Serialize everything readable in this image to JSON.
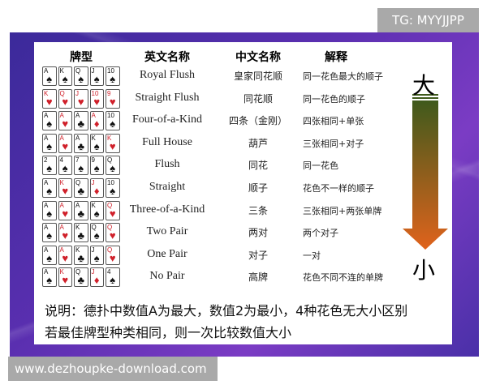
{
  "watermark_top": "TG: MYYJJPP",
  "watermark_bottom": "www.dezhoupke-download.com",
  "headers": {
    "hand": "牌型",
    "english": "英文名称",
    "chinese": "中文名称",
    "explain": "解释"
  },
  "rows": [
    {
      "cards": [
        [
          "A",
          "♠"
        ],
        [
          "K",
          "♠"
        ],
        [
          "Q",
          "♠"
        ],
        [
          "J",
          "♠"
        ],
        [
          "10",
          "♠"
        ]
      ],
      "english": "Royal Flush",
      "chinese": "皇家同花顺",
      "explain": "同一花色最大的顺子"
    },
    {
      "cards": [
        [
          "K",
          "♥"
        ],
        [
          "Q",
          "♥"
        ],
        [
          "J",
          "♥"
        ],
        [
          "10",
          "♥"
        ],
        [
          "9",
          "♥"
        ]
      ],
      "english": "Straight Flush",
      "chinese": "同花顺",
      "explain": "同一花色的顺子"
    },
    {
      "cards": [
        [
          "A",
          "♠"
        ],
        [
          "A",
          "♥"
        ],
        [
          "A",
          "♣"
        ],
        [
          "A",
          "♦"
        ],
        [
          "10",
          "♠"
        ]
      ],
      "english": "Four-of-a-Kind",
      "chinese": "四条（金刚）",
      "explain": "四张相同+单张"
    },
    {
      "cards": [
        [
          "A",
          "♠"
        ],
        [
          "A",
          "♥"
        ],
        [
          "A",
          "♣"
        ],
        [
          "K",
          "♠"
        ],
        [
          "K",
          "♥"
        ]
      ],
      "english": "Full House",
      "chinese": "葫芦",
      "explain": "三张相同+对子"
    },
    {
      "cards": [
        [
          "2",
          "♠"
        ],
        [
          "4",
          "♠"
        ],
        [
          "7",
          "♠"
        ],
        [
          "9",
          "♠"
        ],
        [
          "Q",
          "♠"
        ]
      ],
      "english": "Flush",
      "chinese": "同花",
      "explain": "同一花色"
    },
    {
      "cards": [
        [
          "A",
          "♠"
        ],
        [
          "K",
          "♥"
        ],
        [
          "Q",
          "♣"
        ],
        [
          "J",
          "♦"
        ],
        [
          "10",
          "♠"
        ]
      ],
      "english": "Straight",
      "chinese": "顺子",
      "explain": "花色不一样的顺子"
    },
    {
      "cards": [
        [
          "A",
          "♠"
        ],
        [
          "A",
          "♥"
        ],
        [
          "A",
          "♣"
        ],
        [
          "K",
          "♠"
        ],
        [
          "Q",
          "♥"
        ]
      ],
      "english": "Three-of-a-Kind",
      "chinese": "三条",
      "explain": "三张相同+两张单牌"
    },
    {
      "cards": [
        [
          "A",
          "♠"
        ],
        [
          "A",
          "♥"
        ],
        [
          "K",
          "♣"
        ],
        [
          "Q",
          "♠"
        ],
        [
          "Q",
          "♥"
        ]
      ],
      "english": "Two Pair",
      "chinese": "两对",
      "explain": "两个对子"
    },
    {
      "cards": [
        [
          "A",
          "♠"
        ],
        [
          "A",
          "♥"
        ],
        [
          "K",
          "♣"
        ],
        [
          "J",
          "♠"
        ],
        [
          "Q",
          "♥"
        ]
      ],
      "english": "One Pair",
      "chinese": "对子",
      "explain": "一对"
    },
    {
      "cards": [
        [
          "A",
          "♠"
        ],
        [
          "K",
          "♥"
        ],
        [
          "Q",
          "♣"
        ],
        [
          "J",
          "♦"
        ],
        [
          "4",
          "♠"
        ]
      ],
      "english": "No Pair",
      "chinese": "高牌",
      "explain": "花色不同不连的单牌"
    }
  ],
  "scale": {
    "top": "大",
    "bottom": "小"
  },
  "notes": [
    "说明：德扑中数值A为最大，数值2为最小，4种花色无大小区别",
    "若最佳牌型种类相同，则一次比较数值大小"
  ],
  "colors": {
    "background": "#5a2fb0",
    "arrow_top": "#3f5a1c",
    "arrow_bottom": "#e0631c",
    "red_suit": "#d0202a"
  }
}
